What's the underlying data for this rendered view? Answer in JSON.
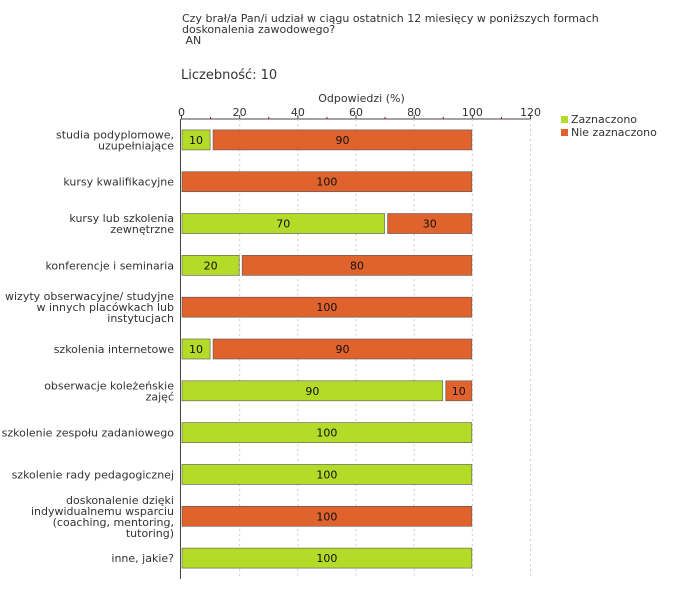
{
  "question": {
    "lines": [
      "Czy brał/a Pan/i udział w ciągu ostatnich 12 miesięcy w poniższych formach",
      "doskonalenia zawodowego?",
      " AN"
    ]
  },
  "count": {
    "label": "Liczebność:",
    "value": "10"
  },
  "colors": {
    "checked": "#b5db29",
    "unchecked": "#e0632d",
    "bar_border": "#555555",
    "grid": "#cccccc"
  },
  "chart_data": {
    "type": "bar",
    "orientation": "horizontal",
    "stacked": true,
    "title": "Odpowiedzi (%)",
    "xlim": [
      0,
      120
    ],
    "xticks": [
      0,
      20,
      40,
      60,
      80,
      100,
      120
    ],
    "legend_position": "top-right",
    "categories": [
      [
        "studia podyplomowe,",
        "uzupełniające"
      ],
      [
        "kursy kwalifikacyjne"
      ],
      [
        "kursy lub szkolenia",
        "zewnętrzne"
      ],
      [
        "konferencje i seminaria"
      ],
      [
        "wizyty obserwacyjne/ studyjne",
        "w innych placówkach lub",
        "instytucjach"
      ],
      [
        "szkolenia internetowe"
      ],
      [
        "obserwacje koleżeńskie",
        "zajęć"
      ],
      [
        "szkolenie zespołu zadaniowego"
      ],
      [
        "szkolenie rady pedagogicznej"
      ],
      [
        "doskonalenie dzięki",
        "indywidualnemu wsparciu",
        "(coaching, mentoring,",
        "tutoring)"
      ],
      [
        "inne, jakie?"
      ]
    ],
    "series": [
      {
        "name": "Zaznaczono",
        "values": [
          10,
          0,
          70,
          20,
          0,
          10,
          90,
          100,
          100,
          0,
          100
        ]
      },
      {
        "name": "Nie zaznaczono",
        "values": [
          90,
          100,
          30,
          80,
          100,
          90,
          10,
          0,
          0,
          100,
          0
        ]
      }
    ]
  }
}
